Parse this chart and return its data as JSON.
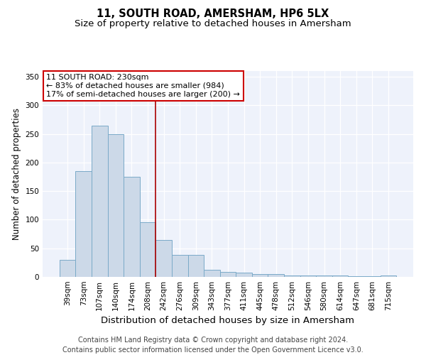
{
  "title": "11, SOUTH ROAD, AMERSHAM, HP6 5LX",
  "subtitle": "Size of property relative to detached houses in Amersham",
  "xlabel": "Distribution of detached houses by size in Amersham",
  "ylabel": "Number of detached properties",
  "footer_line1": "Contains HM Land Registry data © Crown copyright and database right 2024.",
  "footer_line2": "Contains public sector information licensed under the Open Government Licence v3.0.",
  "categories": [
    "39sqm",
    "73sqm",
    "107sqm",
    "140sqm",
    "174sqm",
    "208sqm",
    "242sqm",
    "276sqm",
    "309sqm",
    "343sqm",
    "377sqm",
    "411sqm",
    "445sqm",
    "478sqm",
    "512sqm",
    "546sqm",
    "580sqm",
    "614sqm",
    "647sqm",
    "681sqm",
    "715sqm"
  ],
  "values": [
    30,
    185,
    265,
    250,
    175,
    95,
    65,
    38,
    38,
    12,
    9,
    8,
    5,
    5,
    3,
    3,
    3,
    3,
    1,
    1,
    3
  ],
  "bar_color": "#ccd9e8",
  "bar_edge_color": "#7aaac8",
  "vline_x": 5.5,
  "vline_color": "#aa0000",
  "annotation_text": "11 SOUTH ROAD: 230sqm\n← 83% of detached houses are smaller (984)\n17% of semi-detached houses are larger (200) →",
  "annotation_box_color": "#cc0000",
  "ylim": [
    0,
    360
  ],
  "yticks": [
    0,
    50,
    100,
    150,
    200,
    250,
    300,
    350
  ],
  "background_color": "#eef2fb",
  "grid_color": "#ffffff",
  "title_fontsize": 10.5,
  "subtitle_fontsize": 9.5,
  "xlabel_fontsize": 9.5,
  "ylabel_fontsize": 8.5,
  "tick_fontsize": 7.5,
  "annotation_fontsize": 8,
  "footer_fontsize": 7
}
